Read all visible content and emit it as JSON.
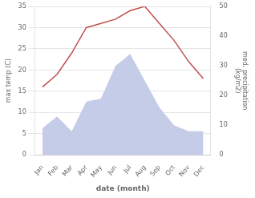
{
  "chart_data": {
    "type": "line",
    "categories": [
      "Jan",
      "Feb",
      "Mar",
      "Apr",
      "May",
      "Jun",
      "Jul",
      "Aug",
      "Sep",
      "Oct",
      "Nov",
      "Dec"
    ],
    "xlabel": "date (month)",
    "ylabel": "max temp (C)",
    "y2label": "med. precipitation\n(kg/m2)",
    "series": [
      {
        "type": "area",
        "axis": "y2",
        "color": "#c5cce8",
        "values": [
          9,
          13,
          8,
          18,
          19,
          30,
          34,
          25,
          16,
          10,
          8,
          8
        ]
      },
      {
        "type": "line",
        "color": "#c0504d",
        "values": [
          16,
          19,
          24,
          30,
          31,
          32,
          34,
          35,
          31,
          27,
          22,
          18
        ]
      }
    ],
    "ylim": [
      0,
      35
    ],
    "yticks": [
      0,
      5,
      10,
      15,
      20,
      25,
      30,
      35
    ],
    "y2lim": [
      0,
      50
    ],
    "y2ticks": [
      0,
      10,
      20,
      30,
      40,
      50
    ],
    "grid": true
  }
}
